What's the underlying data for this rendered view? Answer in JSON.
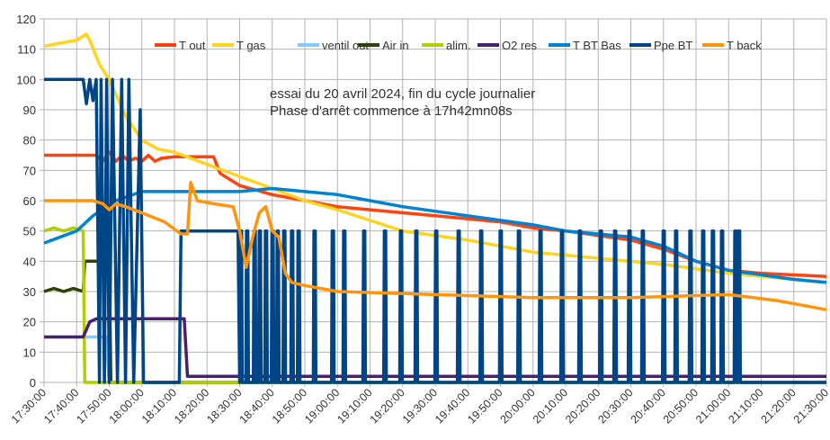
{
  "chart_data": {
    "type": "line",
    "title": "",
    "annotations": [
      "essai du 20 avril 2024, fin du cycle journalier",
      "Phase d'arrêt commence à 17h42mn08s"
    ],
    "xlabel": "",
    "ylabel": "",
    "x_unit": "minutes since 17:30:00",
    "xlim": [
      0,
      240
    ],
    "ylim": [
      0,
      120
    ],
    "grid": true,
    "legend_placement": "top-right",
    "y_ticks": [
      0,
      10,
      20,
      30,
      40,
      50,
      60,
      70,
      80,
      90,
      100,
      110,
      120
    ],
    "x_ticks": [
      "17:30:00",
      "17:40:00",
      "17:50:00",
      "18:00:00",
      "18:10:00",
      "18:20:00",
      "18:30:00",
      "18:40:00",
      "18:50:00",
      "19:00:00",
      "19:10:00",
      "19:20:00",
      "19:30:00",
      "19:40:00",
      "19:50:00",
      "20:00:00",
      "20:10:00",
      "20:20:00",
      "20:30:00",
      "20:40:00",
      "20:50:00",
      "21:00:00",
      "21:10:00",
      "21:20:00",
      "21:30:00"
    ],
    "series": [
      {
        "name": "T out",
        "color": "#ff420e",
        "points": [
          [
            0,
            75
          ],
          [
            16,
            75
          ],
          [
            18,
            73
          ],
          [
            20,
            76
          ],
          [
            22,
            73
          ],
          [
            24,
            75
          ],
          [
            26,
            73
          ],
          [
            28,
            74
          ],
          [
            30,
            73
          ],
          [
            32,
            75
          ],
          [
            34,
            73
          ],
          [
            36,
            74
          ],
          [
            40,
            74.5
          ],
          [
            52,
            74.5
          ],
          [
            54,
            69
          ],
          [
            57,
            67
          ],
          [
            60,
            65
          ],
          [
            70,
            62
          ],
          [
            80,
            60
          ],
          [
            90,
            58
          ],
          [
            100,
            57
          ],
          [
            120,
            55
          ],
          [
            140,
            53
          ],
          [
            150,
            51
          ],
          [
            160,
            50
          ],
          [
            180,
            47
          ],
          [
            190,
            44
          ],
          [
            200,
            40
          ],
          [
            210,
            37
          ],
          [
            220,
            36
          ],
          [
            240,
            35
          ]
        ]
      },
      {
        "name": "T gas",
        "color": "#ffd320",
        "points": [
          [
            0,
            111
          ],
          [
            5,
            112
          ],
          [
            10,
            113
          ],
          [
            13,
            115
          ],
          [
            14,
            113
          ],
          [
            17,
            105
          ],
          [
            20,
            100
          ],
          [
            25,
            88
          ],
          [
            30,
            80
          ],
          [
            35,
            77
          ],
          [
            40,
            76
          ],
          [
            50,
            72
          ],
          [
            60,
            68
          ],
          [
            70,
            64
          ],
          [
            80,
            60
          ],
          [
            90,
            57
          ],
          [
            110,
            50
          ],
          [
            130,
            47
          ],
          [
            150,
            43
          ],
          [
            170,
            41
          ],
          [
            190,
            39
          ],
          [
            210,
            36
          ],
          [
            230,
            34
          ],
          [
            240,
            33
          ]
        ]
      },
      {
        "name": "ventil out",
        "color": "#83caff",
        "points": [
          [
            0,
            15
          ],
          [
            19,
            15
          ],
          [
            20,
            0
          ],
          [
            240,
            0
          ]
        ]
      },
      {
        "name": "Air in",
        "color": "#314004",
        "points": [
          [
            0,
            30
          ],
          [
            3,
            31
          ],
          [
            6,
            30
          ],
          [
            9,
            31
          ],
          [
            12,
            30
          ],
          [
            12.5,
            40
          ],
          [
            20,
            40
          ],
          [
            20.5,
            0
          ],
          [
            240,
            0
          ]
        ]
      },
      {
        "name": "alim.",
        "color": "#aecf00",
        "points": [
          [
            0,
            50
          ],
          [
            3,
            51
          ],
          [
            6,
            50
          ],
          [
            9,
            51
          ],
          [
            12,
            50
          ],
          [
            12.5,
            0
          ],
          [
            240,
            0
          ]
        ]
      },
      {
        "name": "O2 res",
        "color": "#4b1f6f",
        "points": [
          [
            0,
            15
          ],
          [
            12,
            15
          ],
          [
            14,
            20
          ],
          [
            16,
            21
          ],
          [
            43,
            21
          ],
          [
            44,
            2
          ],
          [
            240,
            2
          ]
        ]
      },
      {
        "name": "T BT Bas",
        "color": "#0084d1",
        "points": [
          [
            0,
            46
          ],
          [
            10,
            50
          ],
          [
            15,
            55
          ],
          [
            22,
            60
          ],
          [
            30,
            63
          ],
          [
            60,
            63
          ],
          [
            70,
            64
          ],
          [
            80,
            63
          ],
          [
            90,
            62
          ],
          [
            100,
            60
          ],
          [
            110,
            58
          ],
          [
            130,
            55
          ],
          [
            150,
            52
          ],
          [
            160,
            50
          ],
          [
            180,
            48
          ],
          [
            190,
            45
          ],
          [
            200,
            40
          ],
          [
            210,
            37
          ],
          [
            230,
            34
          ],
          [
            240,
            33
          ]
        ]
      },
      {
        "name": "Ppe BT",
        "color": "#004586",
        "points": [
          [
            0,
            100
          ],
          [
            12,
            100
          ],
          [
            13,
            92
          ],
          [
            14,
            100
          ],
          [
            15,
            93
          ],
          [
            16,
            100
          ],
          [
            17,
            0
          ],
          [
            17.5,
            100
          ],
          [
            18.5,
            0
          ],
          [
            19.2,
            100
          ],
          [
            20,
            0
          ],
          [
            21,
            100
          ],
          [
            22.5,
            0
          ],
          [
            23.8,
            100
          ],
          [
            25,
            0
          ],
          [
            26,
            100
          ],
          [
            27.5,
            0
          ],
          [
            29.5,
            90
          ],
          [
            30.5,
            0
          ],
          [
            41.5,
            0
          ],
          [
            42,
            50
          ],
          [
            59.5,
            50
          ],
          [
            60,
            0
          ]
        ],
        "pulses_50_at": [
          60.4,
          62.3,
          64.6,
          66.2,
          68.1,
          70.1,
          71.7,
          73.7,
          76.1,
          78.1,
          83.0,
          88.6,
          92.1,
          98.2,
          104.6,
          109.5,
          114.2,
          120.3,
          127.2,
          134.1,
          140.1,
          145.7,
          152.3,
          158.9,
          164.4,
          170.8,
          175.2,
          179.6,
          183.7,
          190.1,
          193.9,
          198.3,
          202.2,
          205.2,
          208.0,
          212.1,
          213.2
        ]
      },
      {
        "name": "T back",
        "color": "#ff950e",
        "points": [
          [
            0,
            60
          ],
          [
            15,
            60
          ],
          [
            18,
            59
          ],
          [
            20,
            57
          ],
          [
            22,
            59
          ],
          [
            25,
            58
          ],
          [
            30,
            56
          ],
          [
            37,
            53
          ],
          [
            42,
            49
          ],
          [
            44,
            49
          ],
          [
            45,
            66
          ],
          [
            47,
            60
          ],
          [
            52,
            59
          ],
          [
            58,
            58
          ],
          [
            60,
            50
          ],
          [
            62,
            38
          ],
          [
            64,
            48
          ],
          [
            66,
            56
          ],
          [
            68,
            58
          ],
          [
            70,
            50
          ],
          [
            72,
            48
          ],
          [
            74,
            36
          ],
          [
            76,
            33
          ],
          [
            80,
            32
          ],
          [
            90,
            30
          ],
          [
            120,
            29
          ],
          [
            150,
            28
          ],
          [
            180,
            28
          ],
          [
            210,
            29
          ],
          [
            225,
            27
          ],
          [
            240,
            24
          ]
        ]
      }
    ]
  }
}
